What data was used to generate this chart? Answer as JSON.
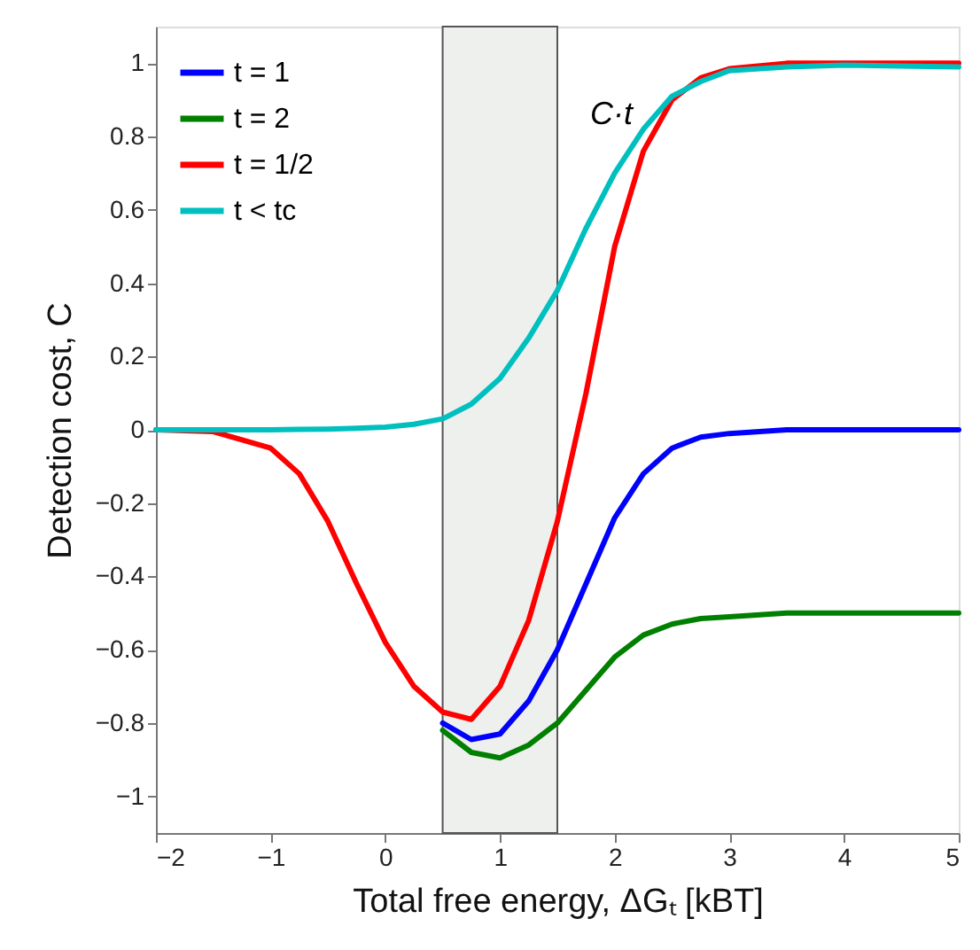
{
  "chart_data": {
    "type": "line",
    "xlabel": "Total free energy, ΔGₜ [kBT]",
    "ylabel": "Detection cost, C",
    "x": [
      -2,
      -1.5,
      -1,
      -0.75,
      -0.5,
      -0.25,
      0,
      0.25,
      0.5,
      0.75,
      1,
      1.25,
      1.5,
      1.75,
      2,
      2.25,
      2.5,
      2.75,
      3,
      3.5,
      4,
      5
    ],
    "series": [
      {
        "name": "t = 1",
        "color": "#0000ff",
        "values": [
          null,
          null,
          null,
          null,
          null,
          null,
          null,
          null,
          -0.8,
          -0.845,
          -0.83,
          -0.74,
          -0.6,
          -0.42,
          -0.24,
          -0.12,
          -0.05,
          -0.02,
          -0.01,
          0,
          0,
          0
        ]
      },
      {
        "name": "t = 2",
        "color": "#007f00",
        "values": [
          null,
          null,
          null,
          null,
          null,
          null,
          null,
          null,
          -0.82,
          -0.88,
          -0.895,
          -0.86,
          -0.8,
          -0.71,
          -0.62,
          -0.56,
          -0.53,
          -0.515,
          -0.51,
          -0.5,
          -0.5,
          -0.5
        ]
      },
      {
        "name": "t = 1/2",
        "color": "#ff0000",
        "values": [
          0,
          -0.005,
          -0.05,
          -0.12,
          -0.25,
          -0.42,
          -0.58,
          -0.7,
          -0.77,
          -0.79,
          -0.7,
          -0.52,
          -0.25,
          0.1,
          0.5,
          0.76,
          0.9,
          0.96,
          0.985,
          1,
          1,
          1
        ]
      },
      {
        "name": "t < tc",
        "color": "#00bfbf",
        "values": [
          0,
          0,
          0,
          0.001,
          0.002,
          0.004,
          0.007,
          0.015,
          0.03,
          0.07,
          0.14,
          0.25,
          0.38,
          0.55,
          0.7,
          0.82,
          0.91,
          0.95,
          0.98,
          0.99,
          0.995,
          0.99
        ]
      }
    ],
    "xlim": [
      -2,
      5
    ],
    "xticks": [
      {
        "value": -2,
        "label": "−2"
      },
      {
        "value": -1,
        "label": "−1"
      },
      0,
      1,
      2,
      3,
      4,
      5
    ],
    "ylim": [
      -1.1,
      1.1
    ],
    "yticks": [
      {
        "value": -1,
        "label": "−1"
      },
      {
        "value": -0.8,
        "label": "−0.8"
      },
      {
        "value": -0.6,
        "label": "−0.6"
      },
      {
        "value": -0.4,
        "label": "−0.4"
      },
      {
        "value": -0.2,
        "label": "−0.2"
      },
      0,
      0.2,
      0.4,
      0.6,
      0.8,
      1
    ],
    "bands": [
      {
        "axis": "x",
        "from": 0.5,
        "to": 1.5,
        "color": "#eef0ee"
      }
    ],
    "annotations": [
      "C·t"
    ],
    "legend": "top left",
    "grid": false,
    "line_style": "solid",
    "marker": "none"
  }
}
